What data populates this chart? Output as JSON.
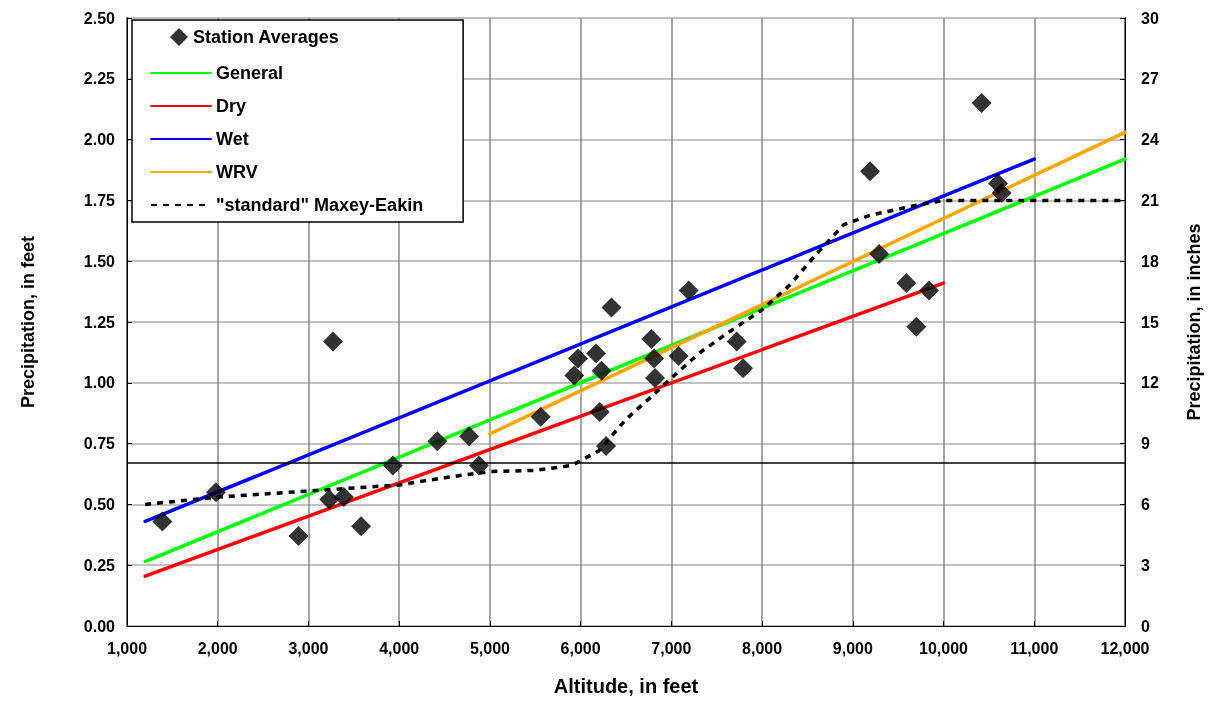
{
  "chart_data": {
    "type": "scatter",
    "xlabel": "Altitude, in feet",
    "ylabel": "Precipitation, in feet",
    "y2label": "Precipitation, in inches",
    "xlim": [
      1000,
      12000
    ],
    "xticks": [
      {
        "value": 1000,
        "label": "1,000"
      },
      {
        "value": 2000,
        "label": "2,000"
      },
      {
        "value": 3000,
        "label": "3,000"
      },
      {
        "value": 4000,
        "label": "4,000"
      },
      {
        "value": 5000,
        "label": "5,000"
      },
      {
        "value": 6000,
        "label": "6,000"
      },
      {
        "value": 7000,
        "label": "7,000"
      },
      {
        "value": 8000,
        "label": "8,000"
      },
      {
        "value": 9000,
        "label": "9,000"
      },
      {
        "value": 10000,
        "label": "10,000"
      },
      {
        "value": 11000,
        "label": "11,000"
      },
      {
        "value": 12000,
        "label": "12,000"
      }
    ],
    "ylim": [
      0,
      2.5
    ],
    "yticks": [
      {
        "value": 0,
        "label": "0.00"
      },
      0.25,
      {
        "value": 0.5,
        "label": "0.50"
      },
      0.75,
      {
        "value": 1,
        "label": "1.00"
      },
      1.25,
      {
        "value": 1.5,
        "label": "1.50"
      },
      1.75,
      {
        "value": 2,
        "label": "2.00"
      },
      2.25,
      {
        "value": 2.5,
        "label": "2.50"
      }
    ],
    "y2lim": [
      0,
      30
    ],
    "y2ticks": [
      0,
      3,
      6,
      9,
      12,
      15,
      18,
      21,
      24,
      27,
      30
    ],
    "grid": true,
    "legend": "top left",
    "ref_lines": [
      {
        "axis": "y",
        "value": 0.667,
        "color": "#000000"
      }
    ],
    "series": [
      {
        "name": "Station Averages",
        "marker": "diamond",
        "color": "#000000",
        "x": [
          1390,
          1980,
          2890,
          3270,
          3230,
          3390,
          3580,
          3930,
          4420,
          4770,
          4880,
          5560,
          5930,
          5970,
          6170,
          6230,
          6210,
          6280,
          6340,
          6780,
          6810,
          6820,
          7080,
          7190,
          7720,
          7790,
          9190,
          9290,
          9590,
          9700,
          9840,
          10420,
          10600,
          10640
        ],
        "values": [
          0.43,
          0.55,
          0.37,
          1.17,
          0.52,
          0.53,
          0.41,
          0.66,
          0.76,
          0.78,
          0.66,
          0.86,
          1.03,
          1.1,
          1.12,
          1.05,
          0.88,
          0.74,
          1.31,
          1.18,
          1.1,
          1.02,
          1.11,
          1.38,
          1.17,
          1.06,
          1.87,
          1.53,
          1.41,
          1.23,
          1.38,
          2.15,
          1.82,
          1.78
        ]
      },
      {
        "name": "General",
        "type": "line",
        "marker": "none",
        "line_style": "solid",
        "color": "#00ff00",
        "x": [
          1200,
          12000
        ],
        "values": [
          0.265,
          1.92
        ]
      },
      {
        "name": "Dry",
        "type": "line",
        "marker": "none",
        "line_style": "solid",
        "color": "#ff0000",
        "x": [
          1200,
          10000
        ],
        "values": [
          0.205,
          1.41
        ]
      },
      {
        "name": "Wet",
        "type": "line",
        "marker": "none",
        "line_style": "solid",
        "color": "#0000ff",
        "x": [
          1200,
          11000
        ],
        "values": [
          0.43,
          1.92
        ]
      },
      {
        "name": "WRV",
        "type": "line",
        "marker": "none",
        "line_style": "solid",
        "color": "#ffa500",
        "x": [
          5000,
          12000
        ],
        "values": [
          0.79,
          2.03
        ]
      },
      {
        "name": "\"standard\" Maxey-Eakin",
        "type": "line",
        "marker": "none",
        "line_style": "dashed",
        "color": "#000000",
        "x": [
          1200,
          2000,
          3000,
          4000,
          4500,
          5000,
          5500,
          5900,
          6200,
          6500,
          6800,
          7000,
          7300,
          7600,
          8000,
          8300,
          8600,
          8900,
          9200,
          9700,
          10000,
          12000
        ],
        "values": [
          0.5,
          0.53,
          0.555,
          0.58,
          0.61,
          0.635,
          0.64,
          0.66,
          0.72,
          0.85,
          0.95,
          1.02,
          1.12,
          1.2,
          1.3,
          1.4,
          1.53,
          1.65,
          1.69,
          1.73,
          1.75,
          1.75
        ]
      }
    ]
  }
}
